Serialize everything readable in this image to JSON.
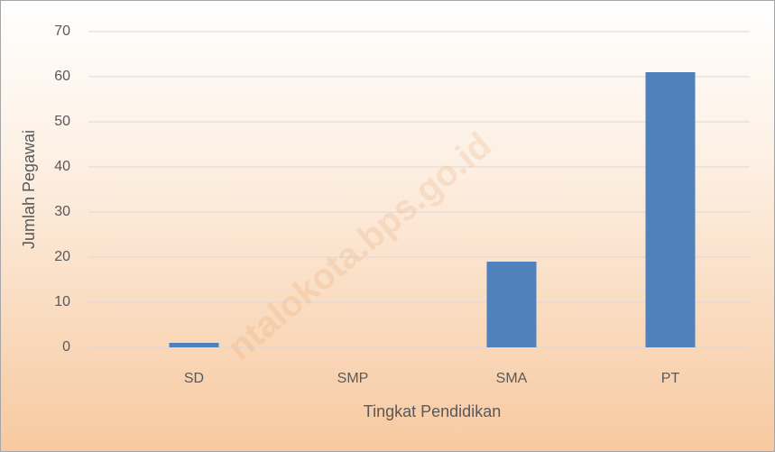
{
  "chart_data": {
    "type": "bar",
    "x_label": "Tingkat Pendidikan",
    "y_label": "Jumlah Pegawai",
    "categories": [
      "SD",
      "SMP",
      "SMA",
      "PT"
    ],
    "values": [
      1,
      0,
      19,
      61
    ],
    "color": "#4f81bd",
    "ylim": [
      0,
      70
    ],
    "yticks": [
      0,
      10,
      20,
      30,
      40,
      50,
      60,
      70
    ],
    "grid": true,
    "watermark": "ntalokota.bps.go.id"
  }
}
